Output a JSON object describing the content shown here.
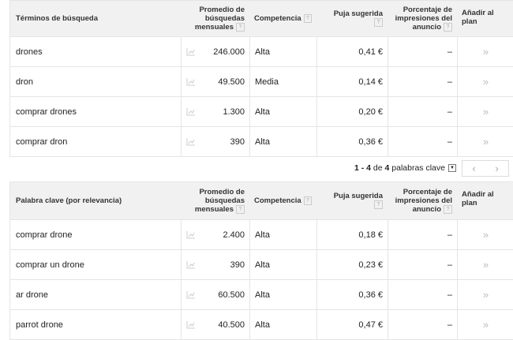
{
  "columns": {
    "mensuales": "Promedio de búsquedas mensuales",
    "competencia": "Competencia",
    "puja": "Puja sugerida",
    "porcentaje": "Porcentaje de impresiones del anuncio",
    "anadir": "Añadir al plan",
    "help": "?"
  },
  "table1": {
    "header": "Términos de búsqueda",
    "rows": [
      {
        "term": "drones",
        "searches": "246.000",
        "competition": "Alta",
        "bid": "0,41 €",
        "share": "–",
        "add": "»"
      },
      {
        "term": "dron",
        "searches": "49.500",
        "competition": "Media",
        "bid": "0,14 €",
        "share": "–",
        "add": "»"
      },
      {
        "term": "comprar drones",
        "searches": "1.300",
        "competition": "Alta",
        "bid": "0,20 €",
        "share": "–",
        "add": "»"
      },
      {
        "term": "comprar dron",
        "searches": "390",
        "competition": "Alta",
        "bid": "0,36 €",
        "share": "–",
        "add": "»"
      }
    ]
  },
  "pagination": {
    "range": "1 - 4",
    "de": "de",
    "total": "4",
    "unit": "palabras clave",
    "prev": "‹",
    "next": "›"
  },
  "table2": {
    "header": "Palabra clave (por relevancia)",
    "rows": [
      {
        "term": "comprar drone",
        "searches": "2.400",
        "competition": "Alta",
        "bid": "0,18 €",
        "share": "–",
        "add": "»"
      },
      {
        "term": "comprar un drone",
        "searches": "390",
        "competition": "Alta",
        "bid": "0,23 €",
        "share": "–",
        "add": "»"
      },
      {
        "term": "ar drone",
        "searches": "60.500",
        "competition": "Alta",
        "bid": "0,36 €",
        "share": "–",
        "add": "»"
      },
      {
        "term": "parrot drone",
        "searches": "40.500",
        "competition": "Alta",
        "bid": "0,47 €",
        "share": "–",
        "add": "»"
      }
    ]
  }
}
